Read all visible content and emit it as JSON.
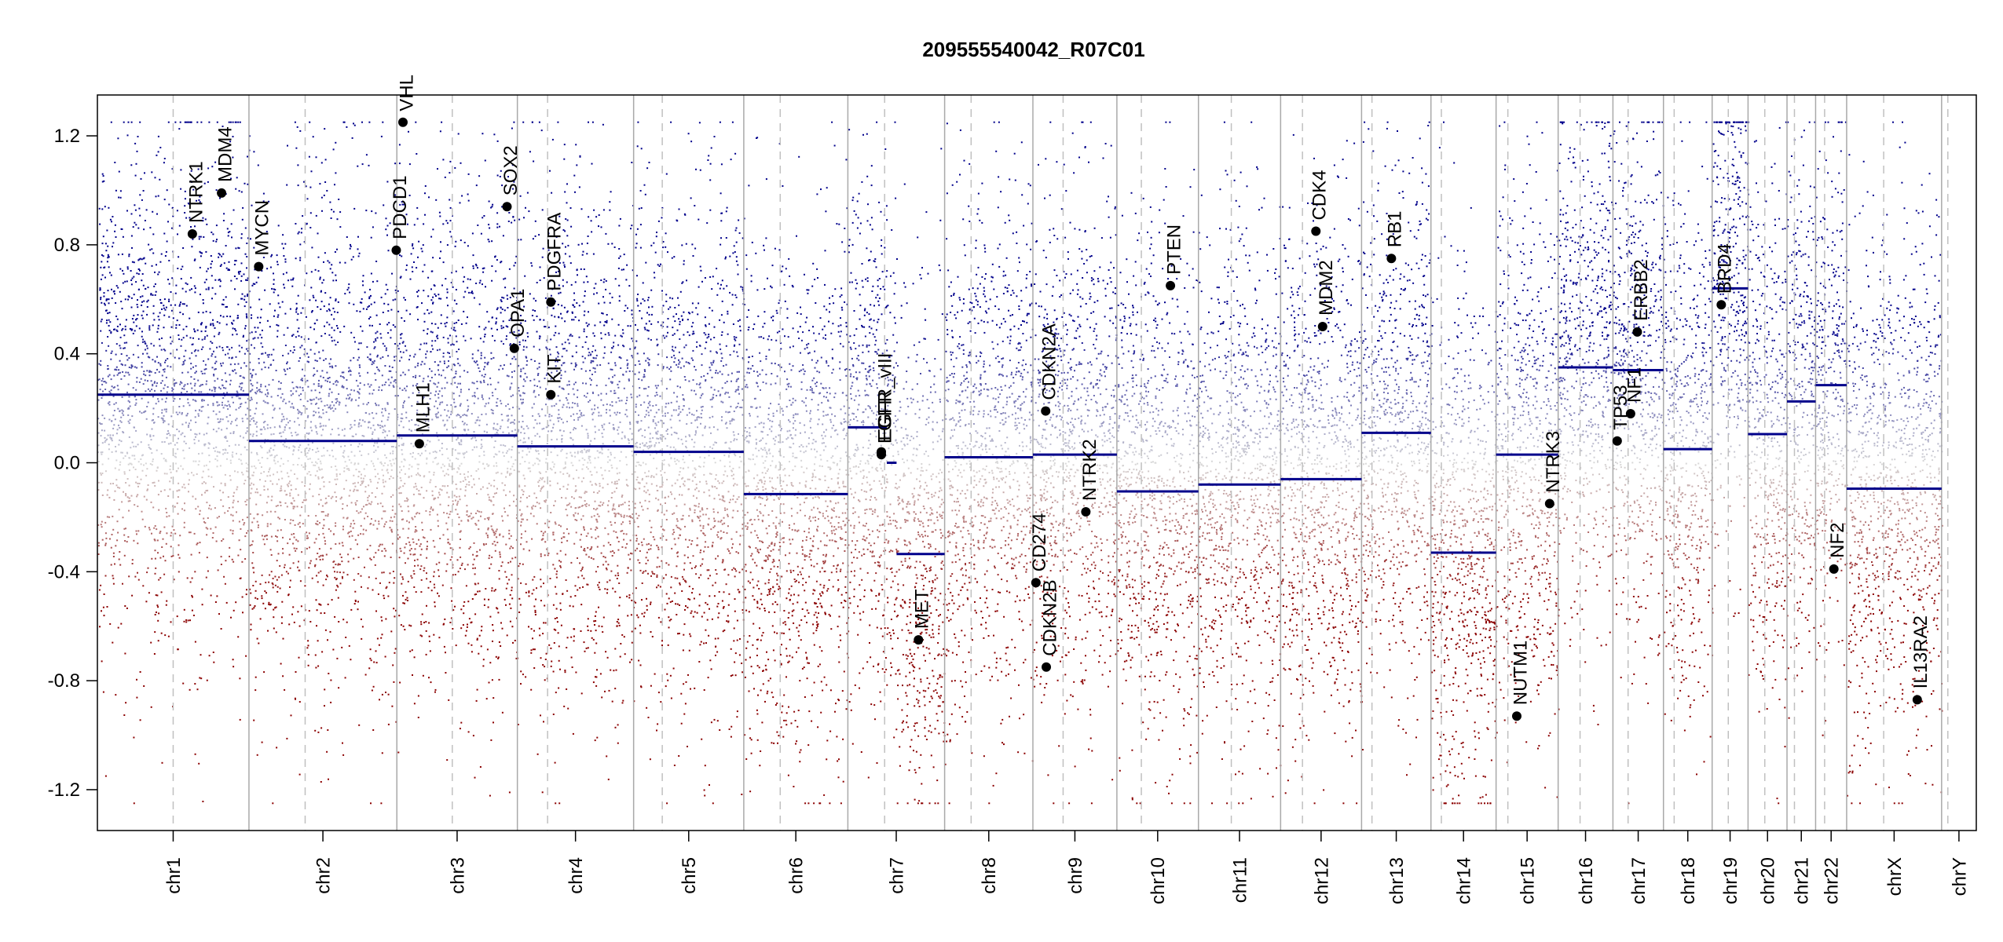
{
  "chart_data": {
    "type": "scatter",
    "title": "209555540042_R07C01",
    "xlabel": "",
    "ylabel": "",
    "ylim": [
      -1.35,
      1.35
    ],
    "y_ticks": [
      -1.2,
      -0.8,
      -0.4,
      0.0,
      0.4,
      0.8,
      1.2
    ],
    "y_tick_labels": [
      "-1.2",
      "-0.8",
      "-0.4",
      "0.0",
      "0.4",
      "0.8",
      "1.2"
    ],
    "clip_value": 1.25,
    "grid": false,
    "colors": {
      "gain": "#00008B",
      "loss": "#8B0000",
      "neutral": "#d8d8d8",
      "segment": "#00008B",
      "gene": "#000000",
      "boundary": "#a9a9a9",
      "centromere": "#c0c0c0"
    },
    "chromosomes": [
      {
        "name": "chr1",
        "length": 249,
        "centromere": 0.5
      },
      {
        "name": "chr2",
        "length": 243,
        "centromere": 0.38
      },
      {
        "name": "chr3",
        "length": 198,
        "centromere": 0.46
      },
      {
        "name": "chr4",
        "length": 191,
        "centromere": 0.26
      },
      {
        "name": "chr5",
        "length": 181,
        "centromere": 0.26
      },
      {
        "name": "chr6",
        "length": 171,
        "centromere": 0.35
      },
      {
        "name": "chr7",
        "length": 159,
        "centromere": 0.38
      },
      {
        "name": "chr8",
        "length": 145,
        "centromere": 0.3
      },
      {
        "name": "chr9",
        "length": 138,
        "centromere": 0.36
      },
      {
        "name": "chr10",
        "length": 134,
        "centromere": 0.3
      },
      {
        "name": "chr11",
        "length": 135,
        "centromere": 0.4
      },
      {
        "name": "chr12",
        "length": 133,
        "centromere": 0.27
      },
      {
        "name": "chr13",
        "length": 114,
        "centromere": 0.15
      },
      {
        "name": "chr14",
        "length": 107,
        "centromere": 0.16
      },
      {
        "name": "chr15",
        "length": 102,
        "centromere": 0.19
      },
      {
        "name": "chr16",
        "length": 90,
        "centromere": 0.4
      },
      {
        "name": "chr17",
        "length": 83,
        "centromere": 0.3
      },
      {
        "name": "chr18",
        "length": 80,
        "centromere": 0.22
      },
      {
        "name": "chr19",
        "length": 59,
        "centromere": 0.45
      },
      {
        "name": "chr20",
        "length": 64,
        "centromere": 0.43
      },
      {
        "name": "chr21",
        "length": 47,
        "centromere": 0.26
      },
      {
        "name": "chr22",
        "length": 51,
        "centromere": 0.29
      },
      {
        "name": "chrX",
        "length": 156,
        "centromere": 0.39
      },
      {
        "name": "chrY",
        "length": 57,
        "centromere": 0.18
      }
    ],
    "segments": [
      {
        "chr": "chr1",
        "start": 0,
        "end": 249,
        "value": 0.25
      },
      {
        "chr": "chr2",
        "start": 0,
        "end": 243,
        "value": 0.08
      },
      {
        "chr": "chr3",
        "start": 0,
        "end": 198,
        "value": 0.1
      },
      {
        "chr": "chr4",
        "start": 0,
        "end": 191,
        "value": 0.06
      },
      {
        "chr": "chr5",
        "start": 0,
        "end": 181,
        "value": 0.04
      },
      {
        "chr": "chr6",
        "start": 0,
        "end": 171,
        "value": -0.115
      },
      {
        "chr": "chr7",
        "start": 0,
        "end": 64,
        "value": 0.13
      },
      {
        "chr": "chr7",
        "start": 64,
        "end": 80,
        "value": 0.0
      },
      {
        "chr": "chr7",
        "start": 80,
        "end": 159,
        "value": -0.335
      },
      {
        "chr": "chr8",
        "start": 0,
        "end": 145,
        "value": 0.02
      },
      {
        "chr": "chr9",
        "start": 0,
        "end": 138,
        "value": 0.03
      },
      {
        "chr": "chr10",
        "start": 0,
        "end": 134,
        "value": -0.105
      },
      {
        "chr": "chr11",
        "start": 0,
        "end": 135,
        "value": -0.08
      },
      {
        "chr": "chr12",
        "start": 0,
        "end": 133,
        "value": -0.06
      },
      {
        "chr": "chr13",
        "start": 0,
        "end": 114,
        "value": 0.11
      },
      {
        "chr": "chr14",
        "start": 0,
        "end": 107,
        "value": -0.33
      },
      {
        "chr": "chr15",
        "start": 0,
        "end": 102,
        "value": 0.03
      },
      {
        "chr": "chr16",
        "start": 0,
        "end": 90,
        "value": 0.35
      },
      {
        "chr": "chr17",
        "start": 0,
        "end": 83,
        "value": 0.34
      },
      {
        "chr": "chr18",
        "start": 0,
        "end": 80,
        "value": 0.05
      },
      {
        "chr": "chr19",
        "start": 0,
        "end": 59,
        "value": 0.64
      },
      {
        "chr": "chr20",
        "start": 0,
        "end": 64,
        "value": 0.105
      },
      {
        "chr": "chr21",
        "start": 0,
        "end": 47,
        "value": 0.225
      },
      {
        "chr": "chr22",
        "start": 0,
        "end": 51,
        "value": 0.285
      },
      {
        "chr": "chrX",
        "start": 0,
        "end": 156,
        "value": -0.095
      }
    ],
    "genes": [
      {
        "name": "NTRK1",
        "chr": "chr1",
        "pos": 156,
        "value": 0.84
      },
      {
        "name": "MDM4",
        "chr": "chr1",
        "pos": 204,
        "value": 0.99
      },
      {
        "name": "MYCN",
        "chr": "chr2",
        "pos": 16,
        "value": 0.72
      },
      {
        "name": "PDCD1",
        "chr": "chr2",
        "pos": 242,
        "value": 0.78
      },
      {
        "name": "VHL",
        "chr": "chr3",
        "pos": 10,
        "value": 1.25
      },
      {
        "name": "MLH1",
        "chr": "chr3",
        "pos": 37,
        "value": 0.07
      },
      {
        "name": "SOX2",
        "chr": "chr3",
        "pos": 181,
        "value": 0.94
      },
      {
        "name": "OPA1",
        "chr": "chr3",
        "pos": 193,
        "value": 0.42
      },
      {
        "name": "PDGFRA",
        "chr": "chr4",
        "pos": 55,
        "value": 0.59
      },
      {
        "name": "KIT",
        "chr": "chr4",
        "pos": 55,
        "value": 0.25
      },
      {
        "name": "EGFR",
        "chr": "chr7",
        "pos": 55,
        "value": 0.03
      },
      {
        "name": "EGFR_vIII",
        "chr": "chr7",
        "pos": 55,
        "value": 0.04
      },
      {
        "name": "MET",
        "chr": "chr7",
        "pos": 116,
        "value": -0.65
      },
      {
        "name": "CDKN2A",
        "chr": "chr9",
        "pos": 21,
        "value": 0.19
      },
      {
        "name": "CD274",
        "chr": "chr9",
        "pos": 5,
        "value": -0.44
      },
      {
        "name": "CDKN2B",
        "chr": "chr9",
        "pos": 22,
        "value": -0.75
      },
      {
        "name": "NTRK2",
        "chr": "chr9",
        "pos": 87,
        "value": -0.18
      },
      {
        "name": "PTEN",
        "chr": "chr10",
        "pos": 88,
        "value": 0.65
      },
      {
        "name": "CDK4",
        "chr": "chr12",
        "pos": 58,
        "value": 0.85
      },
      {
        "name": "MDM2",
        "chr": "chr12",
        "pos": 69,
        "value": 0.5
      },
      {
        "name": "RB1",
        "chr": "chr13",
        "pos": 49,
        "value": 0.75
      },
      {
        "name": "NUTM1",
        "chr": "chr15",
        "pos": 34,
        "value": -0.93
      },
      {
        "name": "NTRK3",
        "chr": "chr15",
        "pos": 88,
        "value": -0.15
      },
      {
        "name": "TP53",
        "chr": "chr17",
        "pos": 7,
        "value": 0.08
      },
      {
        "name": "NF1",
        "chr": "chr17",
        "pos": 29,
        "value": 0.18
      },
      {
        "name": "ERBB2",
        "chr": "chr17",
        "pos": 40,
        "value": 0.48
      },
      {
        "name": "BRD4",
        "chr": "chr19",
        "pos": 15,
        "value": 0.58
      },
      {
        "name": "NF2",
        "chr": "chr22",
        "pos": 30,
        "value": -0.39
      },
      {
        "name": "IL13RA2",
        "chr": "chrX",
        "pos": 116,
        "value": -0.87
      }
    ]
  }
}
